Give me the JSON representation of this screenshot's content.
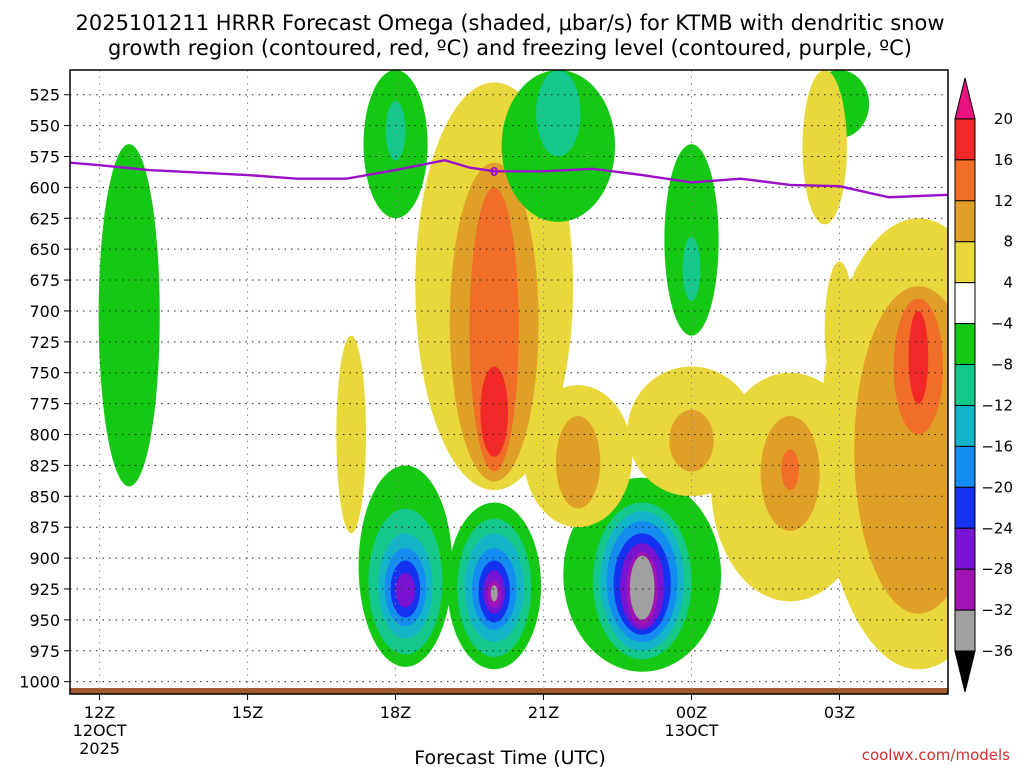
{
  "chart_data": {
    "type": "heatmap",
    "title_line1": "2025101211 HRRR Forecast Omega (shaded, μbar/s) for KTMB with dendritic snow",
    "title_line2": "growth region (contoured, red, ºC) and freezing level (contoured, purple, ºC)",
    "xlabel": "Forecast Time (UTC)",
    "ylabel": "",
    "credit": "coolwx.com/models",
    "x_ticks": [
      {
        "hour": 0,
        "label": "12Z",
        "sub1": "12OCT",
        "sub2": "2025"
      },
      {
        "hour": 3,
        "label": "15Z",
        "sub1": "",
        "sub2": ""
      },
      {
        "hour": 6,
        "label": "18Z",
        "sub1": "",
        "sub2": ""
      },
      {
        "hour": 9,
        "label": "21Z",
        "sub1": "",
        "sub2": ""
      },
      {
        "hour": 12,
        "label": "00Z",
        "sub1": "13OCT",
        "sub2": ""
      },
      {
        "hour": 15,
        "label": "03Z",
        "sub1": "",
        "sub2": ""
      }
    ],
    "xlim": [
      -0.6,
      17.2
    ],
    "y_ticks": [
      525,
      550,
      575,
      600,
      625,
      650,
      675,
      700,
      725,
      750,
      775,
      800,
      825,
      850,
      875,
      900,
      925,
      950,
      975,
      1000
    ],
    "ylim_hPa": [
      1010,
      505
    ],
    "colorbar": {
      "labels": [
        "20",
        "16",
        "12",
        "8",
        "4",
        "−4",
        "−8",
        "−12",
        "−16",
        "−20",
        "−24",
        "−28",
        "−32",
        "−36"
      ],
      "bands": [
        {
          "from": 20,
          "to": 99,
          "color": "#e8137f"
        },
        {
          "from": 16,
          "to": 20,
          "color": "#f02828"
        },
        {
          "from": 12,
          "to": 16,
          "color": "#f06e28"
        },
        {
          "from": 8,
          "to": 12,
          "color": "#e0a028"
        },
        {
          "from": 4,
          "to": 8,
          "color": "#e8d83c"
        },
        {
          "from": -4,
          "to": 4,
          "color": "#ffffff"
        },
        {
          "from": -8,
          "to": -4,
          "color": "#14c814"
        },
        {
          "from": -12,
          "to": -8,
          "color": "#14c88c"
        },
        {
          "from": -16,
          "to": -12,
          "color": "#14b4c8"
        },
        {
          "from": -20,
          "to": -16,
          "color": "#148cf0"
        },
        {
          "from": -24,
          "to": -20,
          "color": "#1432f0"
        },
        {
          "from": -28,
          "to": -24,
          "color": "#7814d2"
        },
        {
          "from": -32,
          "to": -28,
          "color": "#a014b4"
        },
        {
          "from": -36,
          "to": -32,
          "color": "#a0a0a0"
        },
        {
          "from": -99,
          "to": -36,
          "color": "#000000"
        }
      ]
    },
    "freezing_level": {
      "color": "#9a10c8",
      "label": "0",
      "points": [
        {
          "hour": -0.6,
          "hPa": 580
        },
        {
          "hour": 0,
          "hPa": 582
        },
        {
          "hour": 1,
          "hPa": 586
        },
        {
          "hour": 2,
          "hPa": 588
        },
        {
          "hour": 3,
          "hPa": 590
        },
        {
          "hour": 4,
          "hPa": 593
        },
        {
          "hour": 5,
          "hPa": 593
        },
        {
          "hour": 6,
          "hPa": 586
        },
        {
          "hour": 7,
          "hPa": 578
        },
        {
          "hour": 7.5,
          "hPa": 584
        },
        {
          "hour": 8,
          "hPa": 587
        },
        {
          "hour": 9,
          "hPa": 587
        },
        {
          "hour": 10,
          "hPa": 585
        },
        {
          "hour": 11,
          "hPa": 590
        },
        {
          "hour": 12,
          "hPa": 596
        },
        {
          "hour": 13,
          "hPa": 593
        },
        {
          "hour": 14,
          "hPa": 598
        },
        {
          "hour": 15,
          "hPa": 599
        },
        {
          "hour": 16,
          "hPa": 608
        },
        {
          "hour": 17.2,
          "hPa": 606
        }
      ]
    },
    "omega_features": [
      {
        "name": "upward-core-19z",
        "hour": 6.2,
        "hPa": 915,
        "layers": [
          {
            "value": -8,
            "rx": 0.95,
            "top": 825,
            "bottom": 988
          },
          {
            "value": -12,
            "rx": 0.75,
            "top": 860,
            "bottom": 978
          },
          {
            "value": -16,
            "rx": 0.55,
            "top": 880,
            "bottom": 965
          },
          {
            "value": -20,
            "rx": 0.42,
            "top": 892,
            "bottom": 955
          },
          {
            "value": -24,
            "rx": 0.3,
            "top": 902,
            "bottom": 948
          },
          {
            "value": -28,
            "rx": 0.2,
            "top": 912,
            "bottom": 940
          }
        ]
      },
      {
        "name": "upward-core-20z",
        "hour": 8.0,
        "hPa": 928,
        "layers": [
          {
            "value": -8,
            "rx": 0.95,
            "top": 855,
            "bottom": 990
          },
          {
            "value": -12,
            "rx": 0.75,
            "top": 868,
            "bottom": 980
          },
          {
            "value": -16,
            "rx": 0.6,
            "top": 880,
            "bottom": 968
          },
          {
            "value": -20,
            "rx": 0.45,
            "top": 892,
            "bottom": 958
          },
          {
            "value": -24,
            "rx": 0.32,
            "top": 902,
            "bottom": 952
          },
          {
            "value": -28,
            "rx": 0.22,
            "top": 910,
            "bottom": 945
          },
          {
            "value": -32,
            "rx": 0.14,
            "top": 918,
            "bottom": 940
          },
          {
            "value": -36,
            "rx": 0.07,
            "top": 922,
            "bottom": 935
          }
        ]
      },
      {
        "name": "upward-core-2230z",
        "hour": 11.0,
        "hPa": 920,
        "layers": [
          {
            "value": -8,
            "rx": 1.6,
            "top": 835,
            "bottom": 992
          },
          {
            "value": -12,
            "rx": 1.0,
            "top": 855,
            "bottom": 982
          },
          {
            "value": -16,
            "rx": 0.85,
            "top": 862,
            "bottom": 975
          },
          {
            "value": -20,
            "rx": 0.72,
            "top": 870,
            "bottom": 968
          },
          {
            "value": -24,
            "rx": 0.58,
            "top": 880,
            "bottom": 962
          },
          {
            "value": -28,
            "rx": 0.45,
            "top": 888,
            "bottom": 958
          },
          {
            "value": -32,
            "rx": 0.32,
            "top": 895,
            "bottom": 955
          },
          {
            "value": -36,
            "rx": 0.25,
            "top": 898,
            "bottom": 950
          }
        ]
      },
      {
        "name": "downward-1930z",
        "hour": 8.0,
        "hPa": 700,
        "layers": [
          {
            "value": 4,
            "rx": 1.6,
            "top": 515,
            "bottom": 845
          },
          {
            "value": 8,
            "rx": 0.9,
            "top": 580,
            "bottom": 838
          },
          {
            "value": 12,
            "rx": 0.5,
            "top": 600,
            "bottom": 830
          },
          {
            "value": 16,
            "rx": 0.28,
            "top": 745,
            "bottom": 818
          }
        ]
      },
      {
        "name": "downward-2145z",
        "hour": 9.7,
        "hPa": 825,
        "layers": [
          {
            "value": 4,
            "rx": 1.1,
            "top": 760,
            "bottom": 875
          },
          {
            "value": 8,
            "rx": 0.45,
            "top": 785,
            "bottom": 860
          }
        ]
      },
      {
        "name": "downward-0030z",
        "hour": 12.0,
        "hPa": 805,
        "layers": [
          {
            "value": 4,
            "rx": 1.3,
            "top": 745,
            "bottom": 850
          },
          {
            "value": 8,
            "rx": 0.45,
            "top": 780,
            "bottom": 830
          }
        ]
      },
      {
        "name": "downward-0200z",
        "hour": 14.0,
        "hPa": 830,
        "layers": [
          {
            "value": 4,
            "rx": 1.6,
            "top": 750,
            "bottom": 935
          },
          {
            "value": 8,
            "rx": 0.6,
            "top": 785,
            "bottom": 878
          },
          {
            "value": 12,
            "rx": 0.18,
            "top": 812,
            "bottom": 845
          }
        ]
      },
      {
        "name": "downward-0345z",
        "hour": 16.6,
        "hPa": 800,
        "layers": [
          {
            "value": 4,
            "rx": 2.0,
            "top": 625,
            "bottom": 990
          },
          {
            "value": 8,
            "rx": 1.3,
            "top": 680,
            "bottom": 945
          },
          {
            "value": 12,
            "rx": 0.5,
            "top": 690,
            "bottom": 800
          },
          {
            "value": 16,
            "rx": 0.2,
            "top": 700,
            "bottom": 775
          }
        ]
      }
    ]
  }
}
